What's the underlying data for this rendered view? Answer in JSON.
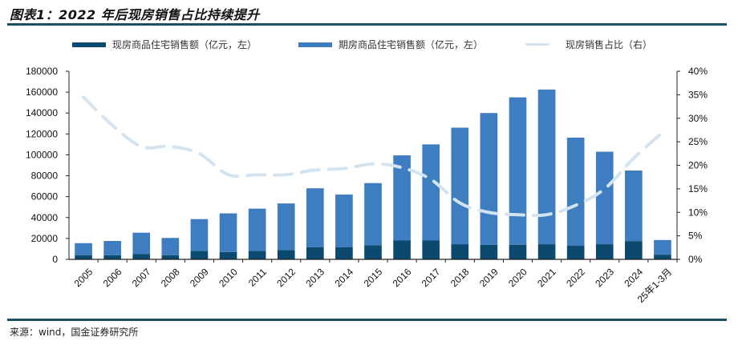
{
  "title": "图表1：2022 年后现房销售占比持续提升",
  "source": "来源：wind，国金证券研究所",
  "colors": {
    "spot": "#0b4a6e",
    "presale": "#3e7dbf",
    "share_line": "#d3e3f0",
    "axis": "#222222",
    "rule": "#1d4f63"
  },
  "chart_data": {
    "type": "bar",
    "stacked": true,
    "title": "2022 年后现房销售占比持续提升",
    "categories": [
      "2005",
      "2006",
      "2007",
      "2008",
      "2009",
      "2010",
      "2011",
      "2012",
      "2013",
      "2014",
      "2015",
      "2016",
      "2017",
      "2018",
      "2019",
      "2020",
      "2021",
      "2022",
      "2023",
      "2024",
      "25年1-3月"
    ],
    "series": [
      {
        "name": "现房商品住宅销售额（亿元，左）",
        "axis": "left",
        "type": "bar",
        "values": [
          4000,
          4000,
          5000,
          4000,
          8000,
          7000,
          8000,
          9000,
          11500,
          11500,
          13500,
          18000,
          18000,
          14500,
          14000,
          14000,
          14500,
          13000,
          14500,
          17500,
          4500
        ]
      },
      {
        "name": "期房商品住宅销售额（亿元，左）",
        "axis": "left",
        "type": "bar",
        "values": [
          11500,
          13600,
          20500,
          16500,
          30500,
          37000,
          40500,
          44500,
          56500,
          50500,
          59500,
          81500,
          92000,
          111500,
          126000,
          141000,
          148000,
          103500,
          88500,
          67500,
          14000
        ]
      },
      {
        "name": "现房销售占比（右）",
        "axis": "right",
        "type": "line",
        "style": "dashed",
        "values": [
          34.5,
          28.5,
          24.0,
          24.0,
          22.5,
          18.0,
          18.0,
          18.0,
          19.0,
          19.3,
          20.3,
          19.5,
          17.0,
          12.0,
          10.0,
          9.5,
          9.5,
          11.5,
          15.0,
          21.5,
          27.0
        ]
      }
    ],
    "left_axis": {
      "ylim": [
        0,
        180000
      ],
      "ticks": [
        "0",
        "20000",
        "40000",
        "60000",
        "80000",
        "100000",
        "120000",
        "140000",
        "160000",
        "180000"
      ]
    },
    "right_axis": {
      "ylim": [
        0,
        40
      ],
      "ticks": [
        "0%",
        "5%",
        "10%",
        "15%",
        "20%",
        "25%",
        "30%",
        "35%",
        "40%"
      ]
    },
    "legend_position": "top",
    "grid": false,
    "xlabel": "",
    "ylabel": ""
  }
}
